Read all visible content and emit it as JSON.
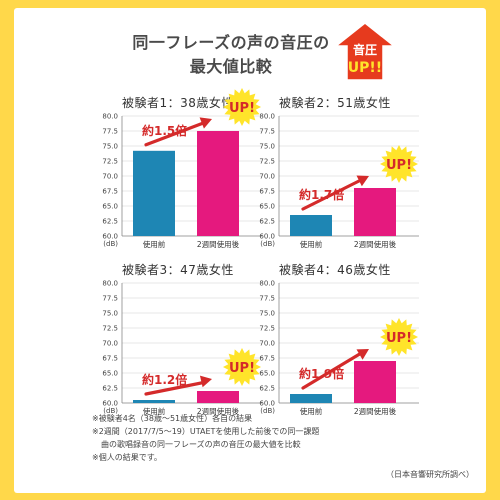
{
  "title": {
    "line1": "同一フレーズの声の音圧の",
    "line2": "最大値比較"
  },
  "badge": {
    "line1": "音圧",
    "line2": "UP!!"
  },
  "colors": {
    "before": "#1e86b4",
    "after": "#e5197e",
    "arrow": "#d42a2a",
    "badge_red": "#e63a1e",
    "burst": "#ffe42a",
    "grid": "#cfcfcf",
    "page_bg": "#ffd84a"
  },
  "chart_data": [
    {
      "type": "bar",
      "title": "被験者1：38歳女性",
      "categories": [
        "使用前",
        "2週間使用後"
      ],
      "values": [
        74.2,
        77.5
      ],
      "ylim": [
        60,
        80
      ],
      "yticks": [
        "80.0",
        "77.5",
        "75.0",
        "72.5",
        "70.0",
        "67.5",
        "65.0",
        "62.5",
        "60.0"
      ],
      "yunit": "(dB)",
      "ratio_label": "約1.5倍",
      "up_label": "UP!"
    },
    {
      "type": "bar",
      "title": "被験者2：51歳女性",
      "categories": [
        "使用前",
        "2週間使用後"
      ],
      "values": [
        63.5,
        68.0
      ],
      "ylim": [
        60,
        80
      ],
      "yticks": [
        "80.0",
        "77.5",
        "75.0",
        "72.5",
        "70.0",
        "67.5",
        "65.0",
        "62.5",
        "60.0"
      ],
      "yunit": "(dB)",
      "ratio_label": "約1.7倍",
      "up_label": "UP!"
    },
    {
      "type": "bar",
      "title": "被験者3：47歳女性",
      "categories": [
        "使用前",
        "2週間使用後"
      ],
      "values": [
        60.5,
        62.0
      ],
      "ylim": [
        60,
        80
      ],
      "yticks": [
        "80.0",
        "77.5",
        "75.0",
        "72.5",
        "70.0",
        "67.5",
        "65.0",
        "62.5",
        "60.0"
      ],
      "yunit": "(dB)",
      "ratio_label": "約1.2倍",
      "up_label": "UP!"
    },
    {
      "type": "bar",
      "title": "被験者4：46歳女性",
      "categories": [
        "使用前",
        "2週間使用後"
      ],
      "values": [
        61.5,
        67.0
      ],
      "ylim": [
        60,
        80
      ],
      "yticks": [
        "80.0",
        "77.5",
        "75.0",
        "72.5",
        "70.0",
        "67.5",
        "65.0",
        "62.5",
        "60.0"
      ],
      "yunit": "(dB)",
      "ratio_label": "約1.9倍",
      "up_label": "UP!"
    }
  ],
  "notes": [
    "※被験者4名（38歳〜51歳女性）各自の結果",
    "※2週間（2017/7/5〜19）UTAETを使用した前後での同一課題",
    "曲の歌唱録音の同一フレーズの声の音圧の最大値を比較",
    "※個人の結果です。"
  ],
  "source": "（日本音響研究所調べ）"
}
